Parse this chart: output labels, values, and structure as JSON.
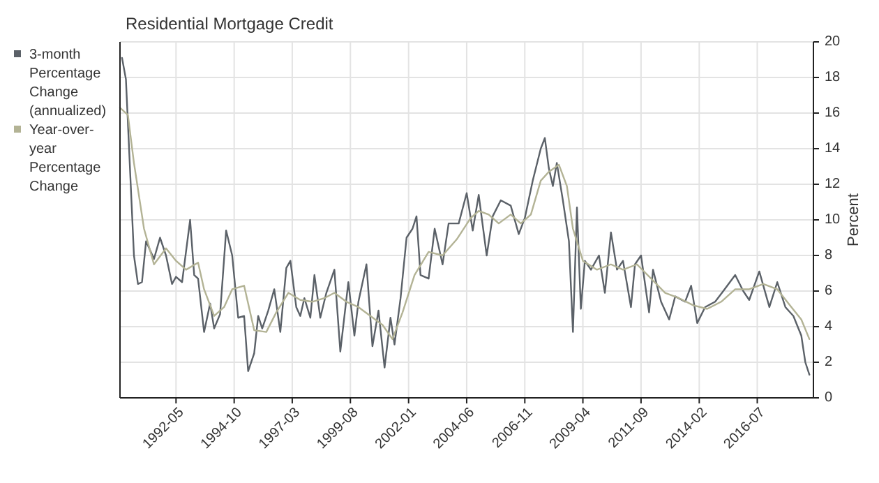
{
  "chart_data": {
    "type": "line",
    "title": "Residential Mortgage Credit",
    "ylabel": "Percent",
    "xlim": [
      "1990-01",
      "2018-11"
    ],
    "xticks": [
      {
        "value": "1992-05",
        "label": "1992-05"
      },
      {
        "value": "1994-10",
        "label": "1994-10"
      },
      {
        "value": "1997-03",
        "label": "1997-03"
      },
      {
        "value": "1999-08",
        "label": "1999-08"
      },
      {
        "value": "2002-01",
        "label": "2002-01"
      },
      {
        "value": "2004-06",
        "label": "2004-06"
      },
      {
        "value": "2006-11",
        "label": "2006-11"
      },
      {
        "value": "2009-04",
        "label": "2009-04"
      },
      {
        "value": "2011-09",
        "label": "2011-09"
      },
      {
        "value": "2014-02",
        "label": "2014-02"
      },
      {
        "value": "2016-07",
        "label": "2016-07"
      }
    ],
    "ylim": [
      0,
      20
    ],
    "yticks": [
      0,
      2,
      4,
      6,
      8,
      10,
      12,
      14,
      16,
      18,
      20
    ],
    "grid": true,
    "legend": "left",
    "marker": "none",
    "line_style": "solid",
    "series": [
      {
        "name": "3-month Percentage Change (annualized)",
        "color": "#5b6168",
        "x": [
          "1990-02",
          "1990-04",
          "1990-08",
          "1990-10",
          "1990-12",
          "1991-02",
          "1991-06",
          "1991-09",
          "1991-12",
          "1992-03",
          "1992-05",
          "1992-08",
          "1992-12",
          "1993-02",
          "1993-04",
          "1993-07",
          "1993-10",
          "1993-12",
          "1994-03",
          "1994-06",
          "1994-09",
          "1994-12",
          "1995-03",
          "1995-05",
          "1995-08",
          "1995-10",
          "1995-12",
          "1996-03",
          "1996-06",
          "1996-09",
          "1996-12",
          "1997-02",
          "1997-05",
          "1997-07",
          "1997-09",
          "1997-12",
          "1998-02",
          "1998-05",
          "1998-08",
          "1998-12",
          "1999-03",
          "1999-07",
          "1999-10",
          "1999-12",
          "2000-04",
          "2000-07",
          "2000-10",
          "2001-01",
          "2001-04",
          "2001-06",
          "2001-09",
          "2001-12",
          "2002-03",
          "2002-05",
          "2002-07",
          "2002-11",
          "2003-02",
          "2003-06",
          "2003-09",
          "2004-02",
          "2004-06",
          "2004-09",
          "2004-12",
          "2005-04",
          "2005-07",
          "2005-11",
          "2006-04",
          "2006-08",
          "2006-11",
          "2007-03",
          "2007-07",
          "2007-09",
          "2007-11",
          "2008-01",
          "2008-03",
          "2008-06",
          "2008-09",
          "2008-11",
          "2009-01",
          "2009-03",
          "2009-05",
          "2009-08",
          "2009-12",
          "2010-03",
          "2010-06",
          "2010-09",
          "2010-12",
          "2011-04",
          "2011-06",
          "2011-09",
          "2012-01",
          "2012-03",
          "2012-07",
          "2012-11",
          "2013-02",
          "2013-07",
          "2013-10",
          "2014-01",
          "2014-05",
          "2014-10",
          "2015-02",
          "2015-08",
          "2015-12",
          "2016-03",
          "2016-08",
          "2017-01",
          "2017-05",
          "2017-09",
          "2018-01",
          "2018-05",
          "2018-07",
          "2018-09"
        ],
        "values": [
          19.1,
          17.9,
          8.0,
          6.4,
          6.5,
          8.8,
          7.8,
          9.0,
          8.0,
          6.4,
          6.8,
          6.5,
          10.0,
          6.9,
          6.7,
          3.7,
          5.3,
          3.9,
          4.7,
          9.4,
          8.0,
          4.5,
          4.6,
          1.5,
          2.5,
          4.6,
          3.9,
          4.9,
          6.1,
          3.7,
          7.3,
          7.7,
          5.1,
          4.6,
          5.6,
          4.5,
          6.9,
          4.5,
          5.9,
          7.2,
          2.6,
          6.5,
          3.5,
          5.4,
          7.5,
          2.9,
          4.9,
          1.7,
          4.5,
          3.0,
          5.6,
          9.0,
          9.5,
          10.2,
          6.9,
          6.7,
          9.5,
          7.5,
          9.8,
          9.8,
          11.5,
          9.4,
          11.4,
          8.0,
          10.2,
          11.1,
          10.8,
          9.2,
          10.1,
          12.2,
          14.0,
          14.6,
          12.9,
          11.9,
          13.2,
          11.1,
          8.8,
          3.7,
          10.7,
          5.0,
          7.7,
          7.2,
          8.0,
          5.9,
          9.3,
          7.2,
          7.7,
          5.1,
          7.5,
          8.0,
          4.8,
          7.2,
          5.4,
          4.4,
          5.7,
          5.4,
          6.3,
          4.2,
          5.1,
          5.4,
          6.0,
          6.9,
          6.0,
          5.5,
          7.1,
          5.1,
          6.5,
          5.1,
          4.6,
          3.5,
          2.0,
          1.3
        ]
      },
      {
        "name": "Year-over-year Percentage Change",
        "color": "#b3b395",
        "x": [
          "1990-01",
          "1990-05",
          "1990-08",
          "1991-01",
          "1991-06",
          "1991-12",
          "1992-05",
          "1992-10",
          "1993-04",
          "1993-07",
          "1993-12",
          "1994-05",
          "1994-09",
          "1995-03",
          "1995-08",
          "1996-02",
          "1996-07",
          "1997-01",
          "1997-07",
          "1998-01",
          "1998-07",
          "1998-12",
          "1999-06",
          "1999-12",
          "2000-06",
          "2000-12",
          "2001-05",
          "2001-10",
          "2002-04",
          "2002-11",
          "2003-06",
          "2004-01",
          "2004-08",
          "2004-12",
          "2005-05",
          "2005-10",
          "2006-04",
          "2006-09",
          "2007-02",
          "2007-07",
          "2007-11",
          "2008-04",
          "2008-08",
          "2008-11",
          "2009-04",
          "2009-11",
          "2010-06",
          "2010-12",
          "2011-07",
          "2012-02",
          "2012-09",
          "2013-04",
          "2013-11",
          "2014-06",
          "2015-01",
          "2015-08",
          "2016-03",
          "2016-10",
          "2017-05",
          "2017-12",
          "2018-05",
          "2018-09"
        ],
        "values": [
          16.3,
          15.9,
          13.2,
          9.5,
          7.5,
          8.4,
          7.7,
          7.2,
          7.6,
          6.1,
          4.6,
          5.1,
          6.1,
          6.3,
          3.8,
          3.7,
          4.8,
          5.9,
          5.5,
          5.4,
          5.6,
          5.9,
          5.4,
          5.1,
          4.6,
          4.1,
          3.3,
          4.8,
          6.9,
          8.2,
          8.0,
          8.9,
          10.1,
          10.5,
          10.3,
          9.8,
          10.3,
          9.8,
          10.3,
          12.2,
          12.7,
          13.1,
          11.9,
          9.5,
          7.7,
          7.2,
          7.5,
          7.2,
          7.5,
          6.7,
          5.9,
          5.6,
          5.2,
          5.0,
          5.4,
          6.1,
          6.1,
          6.4,
          6.1,
          5.1,
          4.4,
          3.3
        ]
      }
    ]
  }
}
